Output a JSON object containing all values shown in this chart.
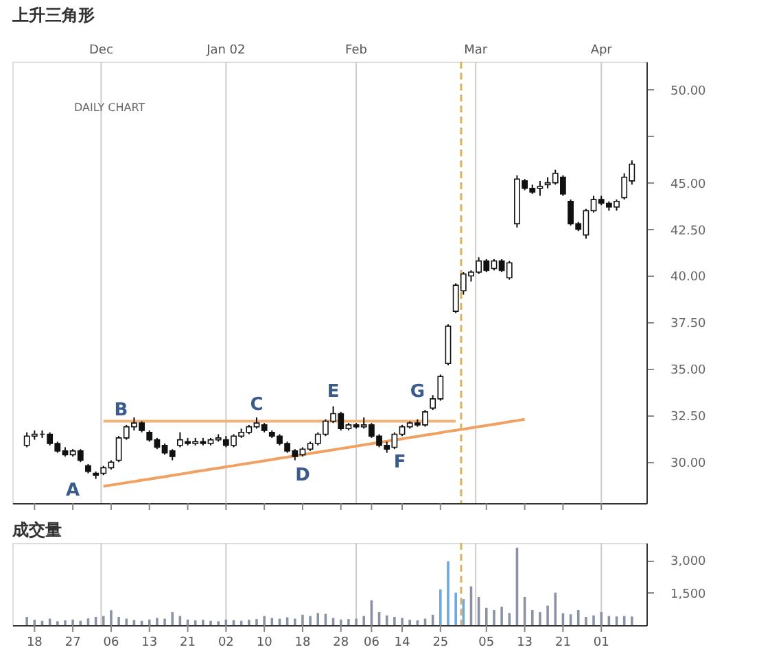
{
  "chart_data": [
    {
      "type": "candlestick",
      "title": "上升三角形",
      "categories": [
        null,
        "18",
        null,
        null,
        null,
        null,
        "27",
        null,
        null,
        null,
        null,
        "06",
        null,
        null,
        null,
        null,
        "13",
        null,
        null,
        null,
        null,
        "21",
        null,
        null,
        null,
        null,
        "02",
        null,
        null,
        null,
        null,
        "10",
        null,
        null,
        null,
        null,
        "18",
        null,
        null,
        null,
        null,
        "28",
        null,
        null,
        null,
        "06",
        null,
        null,
        null,
        "14",
        null,
        null,
        null,
        null,
        "25",
        null,
        null,
        null,
        null,
        null,
        "05",
        null,
        null,
        null,
        null,
        "13",
        null,
        null,
        null,
        null,
        "21",
        null,
        null,
        null,
        null,
        "01",
        null,
        null,
        null,
        null
      ],
      "ohlc": [
        [
          30.9,
          31.6,
          30.8,
          31.4
        ],
        [
          31.4,
          31.7,
          31.2,
          31.5
        ],
        [
          31.5,
          31.7,
          31.3,
          31.5
        ],
        [
          31.5,
          31.6,
          30.9,
          31.0
        ],
        [
          31.0,
          31.1,
          30.5,
          30.6
        ],
        [
          30.6,
          30.8,
          30.3,
          30.4
        ],
        [
          30.4,
          30.7,
          30.3,
          30.6
        ],
        [
          30.6,
          30.7,
          30.0,
          30.1
        ],
        [
          29.8,
          29.9,
          29.4,
          29.5
        ],
        [
          29.4,
          29.5,
          29.1,
          29.3
        ],
        [
          29.4,
          29.8,
          29.3,
          29.7
        ],
        [
          29.7,
          30.1,
          29.6,
          30.0
        ],
        [
          30.1,
          31.4,
          30.0,
          31.3
        ],
        [
          31.3,
          32.0,
          31.2,
          31.9
        ],
        [
          31.9,
          32.4,
          31.7,
          32.1
        ],
        [
          32.1,
          32.2,
          31.6,
          31.7
        ],
        [
          31.6,
          31.7,
          31.1,
          31.2
        ],
        [
          31.2,
          31.3,
          30.7,
          30.8
        ],
        [
          30.9,
          31.0,
          30.4,
          30.5
        ],
        [
          30.6,
          30.7,
          30.1,
          30.3
        ],
        [
          30.9,
          31.6,
          30.8,
          31.2
        ],
        [
          31.1,
          31.3,
          30.9,
          31.0
        ],
        [
          31.0,
          31.3,
          30.9,
          31.1
        ],
        [
          31.1,
          31.3,
          30.9,
          31.0
        ],
        [
          31.0,
          31.3,
          30.9,
          31.2
        ],
        [
          31.2,
          31.5,
          31.1,
          31.3
        ],
        [
          31.2,
          31.4,
          30.8,
          30.9
        ],
        [
          30.9,
          31.5,
          30.8,
          31.4
        ],
        [
          31.4,
          31.8,
          31.3,
          31.6
        ],
        [
          31.6,
          32.0,
          31.5,
          31.9
        ],
        [
          31.9,
          32.4,
          31.8,
          32.1
        ],
        [
          32.0,
          32.1,
          31.6,
          31.7
        ],
        [
          31.6,
          31.7,
          31.3,
          31.4
        ],
        [
          31.4,
          31.5,
          30.9,
          31.0
        ],
        [
          31.0,
          31.1,
          30.5,
          30.6
        ],
        [
          30.6,
          30.7,
          30.1,
          30.3
        ],
        [
          30.4,
          30.8,
          30.3,
          30.7
        ],
        [
          30.7,
          31.1,
          30.6,
          31.0
        ],
        [
          31.0,
          31.6,
          30.9,
          31.5
        ],
        [
          31.5,
          32.3,
          31.4,
          32.2
        ],
        [
          32.2,
          33.0,
          32.1,
          32.6
        ],
        [
          32.6,
          32.7,
          31.7,
          31.8
        ],
        [
          31.8,
          32.1,
          31.7,
          32.0
        ],
        [
          32.0,
          32.1,
          31.8,
          31.9
        ],
        [
          31.9,
          32.4,
          31.8,
          32.0
        ],
        [
          32.0,
          32.1,
          31.3,
          31.4
        ],
        [
          31.4,
          31.5,
          30.8,
          30.9
        ],
        [
          30.9,
          31.1,
          30.5,
          30.7
        ],
        [
          30.8,
          31.6,
          30.7,
          31.5
        ],
        [
          31.5,
          32.0,
          31.4,
          31.9
        ],
        [
          31.9,
          32.2,
          31.8,
          32.1
        ],
        [
          32.1,
          32.3,
          31.9,
          32.0
        ],
        [
          32.0,
          32.8,
          31.9,
          32.7
        ],
        [
          32.9,
          33.6,
          32.8,
          33.4
        ],
        [
          33.4,
          34.7,
          33.3,
          34.6
        ],
        [
          35.3,
          37.4,
          35.2,
          37.3
        ],
        [
          38.1,
          39.6,
          38.0,
          39.5
        ],
        [
          39.2,
          40.2,
          39.0,
          40.1
        ],
        [
          40.0,
          40.3,
          39.7,
          40.2
        ],
        [
          40.2,
          41.0,
          40.1,
          40.8
        ],
        [
          40.8,
          40.9,
          40.2,
          40.3
        ],
        [
          40.4,
          40.9,
          40.3,
          40.8
        ],
        [
          40.8,
          40.9,
          40.2,
          40.3
        ],
        [
          39.9,
          40.8,
          39.8,
          40.7
        ],
        [
          42.8,
          45.4,
          42.6,
          45.2
        ],
        [
          45.1,
          45.2,
          44.6,
          44.7
        ],
        [
          44.7,
          44.9,
          44.4,
          44.5
        ],
        [
          44.7,
          45.1,
          44.3,
          44.8
        ],
        [
          44.9,
          45.3,
          44.7,
          45.0
        ],
        [
          45.0,
          45.7,
          44.9,
          45.5
        ],
        [
          45.3,
          45.4,
          44.3,
          44.4
        ],
        [
          44.0,
          44.1,
          42.7,
          42.8
        ],
        [
          42.8,
          42.9,
          42.4,
          42.5
        ],
        [
          42.2,
          43.6,
          42.0,
          43.5
        ],
        [
          43.5,
          44.3,
          43.4,
          44.1
        ],
        [
          44.1,
          44.3,
          43.8,
          43.9
        ],
        [
          43.9,
          44.0,
          43.5,
          43.7
        ],
        [
          43.7,
          44.1,
          43.5,
          44.0
        ],
        [
          44.2,
          45.5,
          44.1,
          45.3
        ],
        [
          45.1,
          46.2,
          44.9,
          46.0
        ]
      ],
      "series": [
        {
          "type": "line",
          "color": "#f2b47a",
          "values": [
            null,
            null,
            null,
            null,
            null,
            null,
            null,
            null,
            null,
            null,
            32.2,
            32.2,
            32.2,
            32.2,
            32.2,
            32.2,
            32.2,
            32.2,
            32.2,
            32.2,
            32.2,
            32.2,
            32.2,
            32.2,
            32.2,
            32.2,
            32.2,
            32.2,
            32.2,
            32.2,
            32.2,
            32.2,
            32.2,
            32.2,
            32.2,
            32.2,
            32.2,
            32.2,
            32.2,
            32.2,
            32.2,
            32.2,
            32.2,
            32.2,
            32.2,
            32.2,
            32.2,
            32.2,
            32.2,
            32.2,
            32.2,
            32.2,
            32.2,
            32.2,
            32.2,
            32.2,
            32.2,
            null,
            null,
            null,
            null,
            null,
            null,
            null,
            null,
            null,
            null,
            null,
            null,
            null,
            null,
            null,
            null,
            null,
            null,
            null,
            null,
            null,
            null,
            null
          ]
        },
        {
          "type": "line",
          "color": "#f0a060",
          "values": [
            null,
            null,
            null,
            null,
            null,
            null,
            null,
            null,
            null,
            null,
            28.7,
            28.77,
            28.83,
            28.9,
            28.96,
            29.03,
            29.09,
            29.16,
            29.22,
            29.29,
            29.35,
            29.42,
            29.49,
            29.55,
            29.62,
            29.68,
            29.75,
            29.81,
            29.88,
            29.94,
            30.01,
            30.07,
            30.14,
            30.21,
            30.27,
            30.34,
            30.4,
            30.47,
            30.53,
            30.6,
            30.66,
            30.73,
            30.79,
            30.86,
            30.93,
            30.99,
            31.06,
            31.12,
            31.19,
            31.25,
            31.32,
            31.38,
            31.45,
            31.51,
            31.58,
            31.65,
            31.71,
            31.77,
            31.84,
            31.9,
            31.97,
            32.03,
            32.1,
            32.17,
            32.23,
            32.3,
            null,
            null,
            null,
            null,
            null,
            null,
            null,
            null,
            null,
            null,
            null,
            null,
            null,
            null
          ]
        }
      ],
      "ylim": [
        27.8,
        51.5
      ],
      "yticks": [
        {
          "value": 30,
          "label": "30.00"
        },
        {
          "value": 32.5,
          "label": "32.50"
        },
        {
          "value": 35,
          "label": "35.00"
        },
        {
          "value": 37.5,
          "label": "37.50"
        },
        {
          "value": 40,
          "label": "40.00"
        },
        {
          "value": 42.5,
          "label": "42.50"
        },
        {
          "value": 45,
          "label": "45.00"
        },
        {
          "value": 47.5,
          "label": null
        },
        {
          "value": 50,
          "label": "50.00"
        }
      ],
      "tick_labels": "y",
      "grid": "x",
      "annotations": [
        "DAILY CHART",
        "A",
        "B",
        "C",
        "D",
        "E",
        "F",
        "G",
        "Dec",
        "Jan 02",
        "Feb",
        "Mar",
        "Apr"
      ]
    },
    {
      "type": "bar",
      "title": "成交量",
      "categories": [
        null,
        "18",
        null,
        null,
        null,
        null,
        "27",
        null,
        null,
        null,
        null,
        "06",
        null,
        null,
        null,
        null,
        "13",
        null,
        null,
        null,
        null,
        "21",
        null,
        null,
        null,
        null,
        "02",
        null,
        null,
        null,
        null,
        "10",
        null,
        null,
        null,
        null,
        "18",
        null,
        null,
        null,
        null,
        "28",
        null,
        null,
        null,
        "06",
        null,
        null,
        null,
        "14",
        null,
        null,
        null,
        null,
        "25",
        null,
        null,
        null,
        null,
        null,
        "05",
        null,
        null,
        null,
        null,
        "13",
        null,
        null,
        null,
        null,
        "21",
        null,
        null,
        null,
        null,
        "01",
        null,
        null,
        null,
        null
      ],
      "values": [
        380,
        250,
        200,
        300,
        180,
        220,
        260,
        200,
        310,
        380,
        420,
        690,
        380,
        300,
        240,
        200,
        260,
        330,
        300,
        600,
        420,
        260,
        220,
        250,
        200,
        180,
        260,
        230,
        200,
        250,
        280,
        420,
        330,
        300,
        360,
        300,
        480,
        420,
        560,
        520,
        330,
        260,
        280,
        300,
        420,
        1150,
        600,
        450,
        380,
        330,
        250,
        220,
        300,
        480,
        1650,
        2950,
        1500,
        1200,
        1790,
        1300,
        800,
        700,
        850,
        560,
        3580,
        1300,
        700,
        600,
        900,
        1500,
        550,
        500,
        700,
        380,
        450,
        600,
        420,
        400,
        420,
        400
      ],
      "colors": [
        "#8a93a6",
        "#8a93a6",
        "#8a93a6",
        "#8a93a6",
        "#8a93a6",
        "#8a93a6",
        "#8a93a6",
        "#8a93a6",
        "#8a93a6",
        "#8a93a6",
        "#8a93a6",
        "#8a93a6",
        "#8a93a6",
        "#8a93a6",
        "#8a93a6",
        "#8a93a6",
        "#8a93a6",
        "#8a93a6",
        "#8a93a6",
        "#8a93a6",
        "#8a93a6",
        "#8a93a6",
        "#8a93a6",
        "#8a93a6",
        "#8a93a6",
        "#8a93a6",
        "#8a93a6",
        "#8a93a6",
        "#8a93a6",
        "#8a93a6",
        "#8a93a6",
        "#8a93a6",
        "#8a93a6",
        "#8a93a6",
        "#8a93a6",
        "#8a93a6",
        "#8a93a6",
        "#8a93a6",
        "#8a93a6",
        "#8a93a6",
        "#8a93a6",
        "#8a93a6",
        "#8a93a6",
        "#8a93a6",
        "#8a93a6",
        "#8a93a6",
        "#8a93a6",
        "#8a93a6",
        "#8a93a6",
        "#8a93a6",
        "#8a93a6",
        "#8a93a6",
        "#8a93a6",
        "#8a93a6",
        "#6fa8dc",
        "#6fa8dc",
        "#6fa8dc",
        "#6fa8dc",
        "#8a93a6",
        "#8a93a6",
        "#8a93a6",
        "#8a93a6",
        "#8a93a6",
        "#8a93a6",
        "#8a93a6",
        "#8a93a6",
        "#8a93a6",
        "#8a93a6",
        "#8a93a6",
        "#8a93a6",
        "#8a93a6",
        "#8a93a6",
        "#8a93a6",
        "#8a93a6",
        "#8a93a6",
        "#8a93a6",
        "#8a93a6",
        "#8a93a6",
        "#8a93a6",
        "#8a93a6"
      ],
      "ylim": [
        0,
        3800
      ],
      "yticks": [
        {
          "value": 1500,
          "label": "1,500"
        },
        {
          "value": 3000,
          "label": "3,000"
        }
      ],
      "grid": "x"
    }
  ]
}
